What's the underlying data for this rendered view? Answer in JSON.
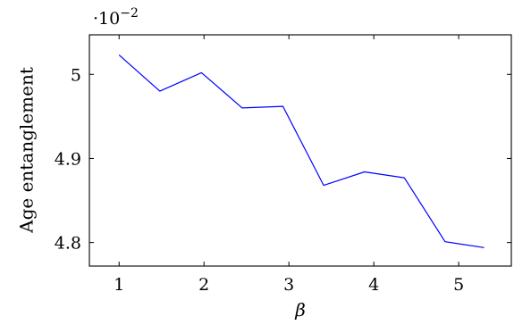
{
  "chart_data": {
    "type": "line",
    "title": "",
    "xlabel": "β",
    "ylabel": "Age entanglement",
    "y_scale_factor": {
      "base": "·10",
      "exponent": "−2"
    },
    "xlim": [
      0.65,
      5.62
    ],
    "ylim": [
      4.772,
      5.047
    ],
    "x_ticks": [
      1,
      2,
      3,
      4,
      5
    ],
    "y_ticks": [
      4.8,
      4.9,
      5.0
    ],
    "x_tick_labels": [
      "1",
      "2",
      "3",
      "4",
      "5"
    ],
    "y_tick_labels": [
      "4.8",
      "4.9",
      "5"
    ],
    "grid": false,
    "legend": "none",
    "series": [
      {
        "color": "#0000ff",
        "x": [
          1.0,
          1.48,
          1.97,
          2.45,
          2.93,
          3.41,
          3.89,
          4.36,
          4.84,
          5.3
        ],
        "y": [
          5.023,
          4.98,
          5.002,
          4.96,
          4.962,
          4.868,
          4.884,
          4.877,
          4.801,
          4.794
        ]
      }
    ]
  }
}
